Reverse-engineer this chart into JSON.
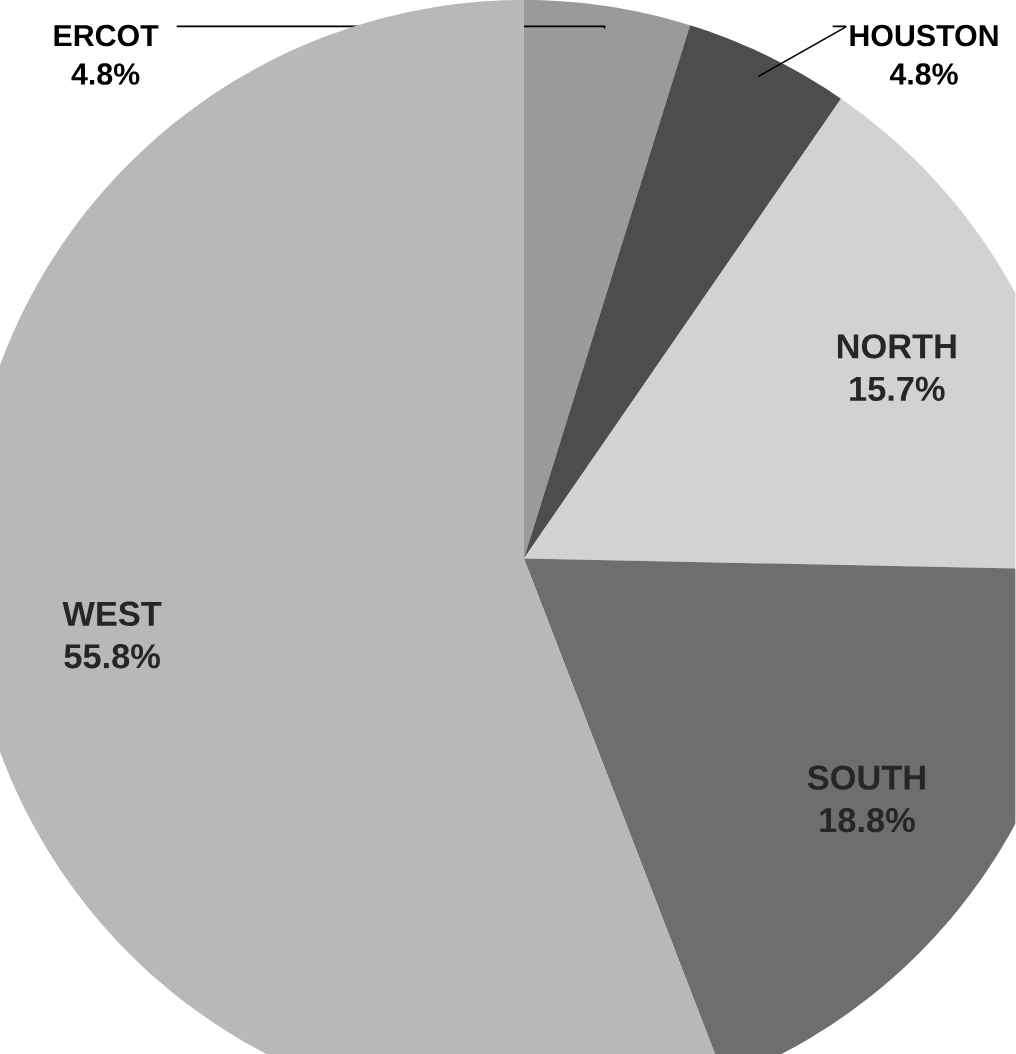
{
  "chart_data": {
    "type": "pie",
    "categories": [
      "ERCOT",
      "HOUSTON",
      "NORTH",
      "SOUTH",
      "WEST"
    ],
    "values": [
      4.8,
      4.8,
      15.7,
      18.8,
      55.8
    ],
    "value_labels": [
      "4.8%",
      "4.8%",
      "15.7%",
      "18.8%",
      "55.8%"
    ],
    "colors": [
      "#9a9a9a",
      "#4d4d4d",
      "#d2d2d2",
      "#6e6e6e",
      "#b8b8b8"
    ]
  }
}
